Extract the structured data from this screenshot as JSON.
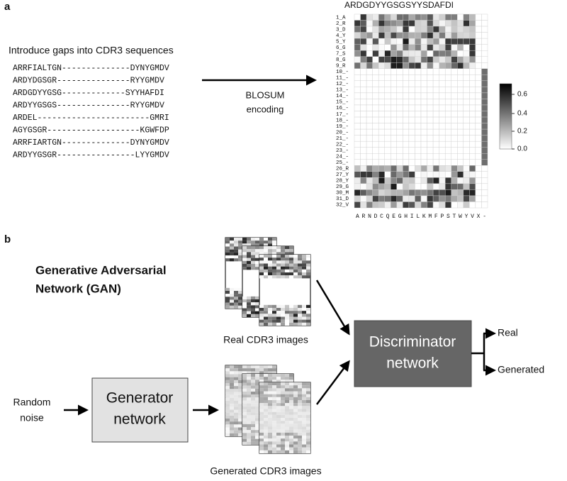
{
  "panel_a": {
    "label": "a",
    "intro": "Introduce gaps into CDR3 sequences",
    "sequences": [
      "ARRFIALTGN--------------DYNYGMDV",
      "ARDYDGSGR---------------RYYGMDV",
      "ARDGDYYGSG-------------SYYHAFDI",
      "ARDYYGSGS---------------RYYGMDV",
      "ARDEL-----------------------GMRI",
      "AGYGSGR-------------------KGWFDP",
      "ARRFIARTGN--------------DYNYGMDV",
      "ARDYYGSGR----------------LYYGMDV"
    ],
    "encoding": [
      "BLOSUM",
      "encoding"
    ],
    "heatmap_title": "ARDGDYYGSGSYYSDAFDI",
    "row_labels": [
      "1_A",
      "2_R",
      "3_D",
      "4_Y",
      "5_Y",
      "6_G",
      "7_S",
      "8_G",
      "9_R",
      "10_-",
      "11_-",
      "12_-",
      "13_-",
      "14_-",
      "15_-",
      "16_-",
      "17_-",
      "18_-",
      "19_-",
      "20_-",
      "21_-",
      "22_-",
      "23_-",
      "24_-",
      "25_-",
      "26_R",
      "27_Y",
      "28_Y",
      "29_G",
      "30_M",
      "31_D",
      "32_V"
    ],
    "column_labels": "ARNDCQEGHILKMFPSTWYVX-",
    "colorbar_labels": [
      "0.6",
      "0.4",
      "0.2",
      "0.0"
    ]
  },
  "panel_b": {
    "label": "b",
    "gan_title": [
      "Generative Adversarial",
      "Network (GAN)"
    ],
    "real_images": "Real CDR3 images",
    "generated_images": "Generated CDR3 images",
    "noise": [
      "Random",
      "noise"
    ],
    "generator": [
      "Generator",
      "network"
    ],
    "discriminator": [
      "Discriminator",
      "network"
    ],
    "outputs": [
      "Real",
      "Generated"
    ]
  }
}
